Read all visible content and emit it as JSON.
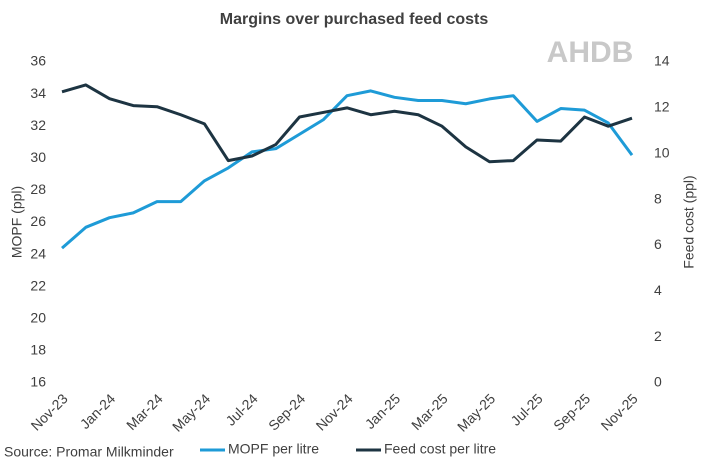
{
  "chart_data": {
    "type": "line",
    "title": "Margins over purchased feed costs",
    "logo": "AHDB",
    "source": "Source: Promar Milkminder",
    "y_label": "MOPF (ppl)",
    "y2_label": "Feed cost (ppl)",
    "categories": [
      "Nov-23",
      null,
      "Jan-24",
      null,
      "Mar-24",
      null,
      "May-24",
      null,
      "Jul-24",
      null,
      "Sep-24",
      null,
      "Nov-24",
      null,
      "Jan-25",
      null,
      "Mar-25",
      null,
      "May-25",
      null,
      "Jul-25",
      null,
      "Sep-25",
      null,
      "Nov-25"
    ],
    "series": [
      {
        "name": "MOPF per litre",
        "color": "#1e9bd7",
        "values": [
          24.4,
          25.7,
          26.3,
          26.6,
          27.3,
          27.3,
          28.6,
          29.4,
          30.4,
          30.6,
          31.5,
          32.4,
          33.9,
          34.2,
          33.8,
          33.6,
          33.6,
          33.4,
          33.7,
          33.9,
          32.3,
          33.1,
          33.0,
          32.2,
          30.2
        ]
      },
      {
        "name": "Feed cost per litre",
        "color": "#1d3442",
        "axis": "y2",
        "values": [
          12.7,
          13.0,
          12.4,
          12.1,
          12.05,
          11.7,
          11.3,
          9.7,
          9.9,
          10.4,
          11.6,
          11.8,
          12.0,
          11.7,
          11.85,
          11.7,
          11.2,
          10.3,
          9.65,
          9.7,
          10.6,
          10.55,
          11.6,
          11.2,
          11.55
        ]
      }
    ],
    "ylim": [
      16,
      36
    ],
    "yticks": [
      16,
      18,
      20,
      22,
      24,
      26,
      28,
      30,
      32,
      34,
      36
    ],
    "y2lim": [
      0,
      14
    ],
    "y2ticks": [
      0,
      2,
      4,
      6,
      8,
      10,
      12,
      14
    ]
  }
}
